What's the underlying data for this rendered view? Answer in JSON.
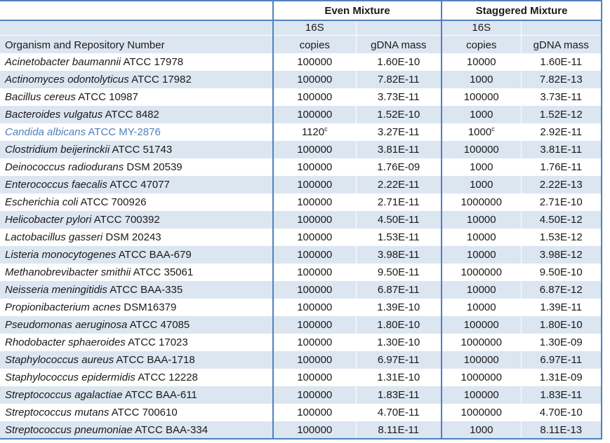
{
  "table": {
    "headers": {
      "organism_col": "Organism and Repository Number",
      "group_even": "Even Mixture",
      "group_staggered": "Staggered Mixture",
      "sub_16s": "16S",
      "sub_copies": "copies",
      "sub_gdna": "gDNA mass"
    },
    "colors": {
      "border_blue": "#4F81BD",
      "band_blue": "#DCE6F1",
      "highlight_text_blue": "#4F81BD",
      "text": "#1a1a1a"
    },
    "footnote_marker": "c",
    "rows": [
      {
        "species": "Acinetobacter baumannii",
        "repo": "ATCC 17978",
        "even_copies": "100000",
        "even_sup": "",
        "even_mass": "1.60E-10",
        "stag_copies": "10000",
        "stag_sup": "",
        "stag_mass": "1.60E-11",
        "highlight": false
      },
      {
        "species": "Actinomyces odontolyticus",
        "repo": "ATCC 17982",
        "even_copies": "100000",
        "even_sup": "",
        "even_mass": "7.82E-11",
        "stag_copies": "1000",
        "stag_sup": "",
        "stag_mass": "7.82E-13",
        "highlight": false
      },
      {
        "species": "Bacillus cereus",
        "repo": "ATCC 10987",
        "even_copies": "100000",
        "even_sup": "",
        "even_mass": "3.73E-11",
        "stag_copies": "100000",
        "stag_sup": "",
        "stag_mass": "3.73E-11",
        "highlight": false
      },
      {
        "species": "Bacteroides vulgatus",
        "repo": "ATCC 8482",
        "even_copies": "100000",
        "even_sup": "",
        "even_mass": "1.52E-10",
        "stag_copies": "1000",
        "stag_sup": "",
        "stag_mass": "1.52E-12",
        "highlight": false
      },
      {
        "species": "Candida albicans",
        "repo": "ATCC MY-2876",
        "even_copies": "1120",
        "even_sup": "c",
        "even_mass": "3.27E-11",
        "stag_copies": "1000",
        "stag_sup": "c",
        "stag_mass": "2.92E-11",
        "highlight": true
      },
      {
        "species": "Clostridium beijerinckii",
        "repo": "ATCC 51743",
        "even_copies": "100000",
        "even_sup": "",
        "even_mass": "3.81E-11",
        "stag_copies": "100000",
        "stag_sup": "",
        "stag_mass": "3.81E-11",
        "highlight": false
      },
      {
        "species": "Deinococcus radiodurans",
        "repo": "DSM 20539",
        "even_copies": "100000",
        "even_sup": "",
        "even_mass": "1.76E-09",
        "stag_copies": "1000",
        "stag_sup": "",
        "stag_mass": "1.76E-11",
        "highlight": false
      },
      {
        "species": "Enterococcus faecalis",
        "repo": "ATCC 47077",
        "even_copies": "100000",
        "even_sup": "",
        "even_mass": "2.22E-11",
        "stag_copies": "1000",
        "stag_sup": "",
        "stag_mass": "2.22E-13",
        "highlight": false
      },
      {
        "species": "Escherichia coli",
        "repo": "ATCC 700926",
        "even_copies": "100000",
        "even_sup": "",
        "even_mass": "2.71E-11",
        "stag_copies": "1000000",
        "stag_sup": "",
        "stag_mass": "2.71E-10",
        "highlight": false
      },
      {
        "species": "Helicobacter pylori",
        "repo": "ATCC 700392",
        "even_copies": "100000",
        "even_sup": "",
        "even_mass": "4.50E-11",
        "stag_copies": "10000",
        "stag_sup": "",
        "stag_mass": "4.50E-12",
        "highlight": false
      },
      {
        "species": "Lactobacillus gasseri",
        "repo": "DSM 20243",
        "even_copies": "100000",
        "even_sup": "",
        "even_mass": "1.53E-11",
        "stag_copies": "10000",
        "stag_sup": "",
        "stag_mass": "1.53E-12",
        "highlight": false
      },
      {
        "species": "Listeria monocytogenes",
        "repo": "ATCC BAA-679",
        "even_copies": "100000",
        "even_sup": "",
        "even_mass": "3.98E-11",
        "stag_copies": "10000",
        "stag_sup": "",
        "stag_mass": "3.98E-12",
        "highlight": false
      },
      {
        "species": "Methanobrevibacter smithii",
        "repo": "ATCC 35061",
        "even_copies": "100000",
        "even_sup": "",
        "even_mass": "9.50E-11",
        "stag_copies": "1000000",
        "stag_sup": "",
        "stag_mass": "9.50E-10",
        "highlight": false
      },
      {
        "species": "Neisseria meningitidis",
        "repo": "ATCC BAA-335",
        "even_copies": "100000",
        "even_sup": "",
        "even_mass": "6.87E-11",
        "stag_copies": "10000",
        "stag_sup": "",
        "stag_mass": "6.87E-12",
        "highlight": false
      },
      {
        "species": "Propionibacterium acnes",
        "repo": "DSM16379",
        "even_copies": "100000",
        "even_sup": "",
        "even_mass": "1.39E-10",
        "stag_copies": "10000",
        "stag_sup": "",
        "stag_mass": "1.39E-11",
        "highlight": false
      },
      {
        "species": "Pseudomonas aeruginosa",
        "repo": "ATCC 47085",
        "even_copies": "100000",
        "even_sup": "",
        "even_mass": "1.80E-10",
        "stag_copies": "100000",
        "stag_sup": "",
        "stag_mass": "1.80E-10",
        "highlight": false
      },
      {
        "species": "Rhodobacter sphaeroides",
        "repo": "ATCC 17023",
        "even_copies": "100000",
        "even_sup": "",
        "even_mass": "1.30E-10",
        "stag_copies": "1000000",
        "stag_sup": "",
        "stag_mass": "1.30E-09",
        "highlight": false
      },
      {
        "species": "Staphylococcus aureus",
        "repo": "ATCC BAA-1718",
        "even_copies": "100000",
        "even_sup": "",
        "even_mass": "6.97E-11",
        "stag_copies": "100000",
        "stag_sup": "",
        "stag_mass": "6.97E-11",
        "highlight": false
      },
      {
        "species": "Staphylococcus epidermidis",
        "repo": "ATCC 12228",
        "even_copies": "100000",
        "even_sup": "",
        "even_mass": "1.31E-10",
        "stag_copies": "1000000",
        "stag_sup": "",
        "stag_mass": "1.31E-09",
        "highlight": false
      },
      {
        "species": "Streptococcus agalactiae",
        "repo": "ATCC BAA-611",
        "even_copies": "100000",
        "even_sup": "",
        "even_mass": "1.83E-11",
        "stag_copies": "100000",
        "stag_sup": "",
        "stag_mass": "1.83E-11",
        "highlight": false
      },
      {
        "species": "Streptococcus mutans",
        "repo": "ATCC 700610",
        "even_copies": "100000",
        "even_sup": "",
        "even_mass": "4.70E-11",
        "stag_copies": "1000000",
        "stag_sup": "",
        "stag_mass": "4.70E-10",
        "highlight": false
      },
      {
        "species": "Streptococcus pneumoniae",
        "repo": "ATCC BAA-334",
        "even_copies": "100000",
        "even_sup": "",
        "even_mass": "8.11E-11",
        "stag_copies": "1000",
        "stag_sup": "",
        "stag_mass": "8.11E-13",
        "highlight": false
      }
    ]
  }
}
